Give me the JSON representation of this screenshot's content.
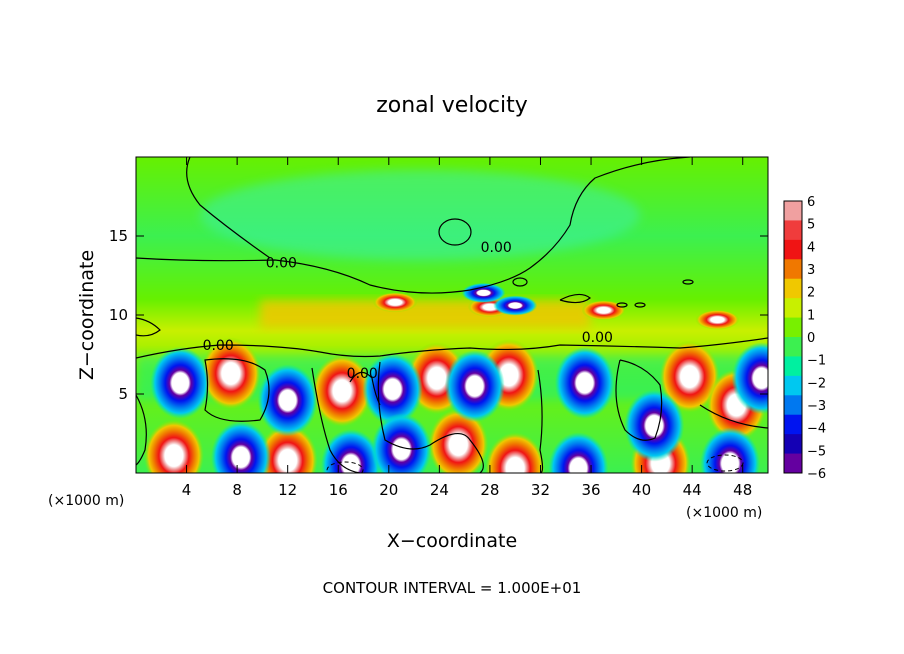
{
  "chart_data": {
    "type": "heatmap",
    "title": "zonal velocity",
    "xlabel": "X−coordinate",
    "ylabel": "Z−coordinate",
    "x_unit_left": "(×1000 m)",
    "x_unit_right": "(×1000 m)",
    "footer": "CONTOUR INTERVAL = 1.000E+01",
    "xlim": [
      0,
      50
    ],
    "ylim": [
      0,
      20
    ],
    "x_ticks": [
      4,
      8,
      12,
      16,
      20,
      24,
      28,
      32,
      36,
      40,
      44,
      48
    ],
    "y_ticks": [
      5,
      10,
      15
    ],
    "colorbar": {
      "range": [
        -6,
        6
      ],
      "tick_labels": [
        "6",
        "5",
        "4",
        "3",
        "2",
        "1",
        "0",
        "−1",
        "−2",
        "−3",
        "−4",
        "−5",
        "−6"
      ],
      "colors": [
        "#f0a0a0",
        "#f03c3c",
        "#f01414",
        "#f07800",
        "#f0c800",
        "#c8f000",
        "#78f000",
        "#3cf050",
        "#00f0a0",
        "#00c8f0",
        "#0078f0",
        "#0014f0",
        "#1400b4",
        "#6400a0"
      ]
    },
    "contour_labels": [
      {
        "text": "0.00",
        "x": 11.5,
        "z": 13.0
      },
      {
        "text": "0.00",
        "x": 28.5,
        "z": 14.0
      },
      {
        "text": "0.00",
        "x": 6.5,
        "z": 7.8
      },
      {
        "text": "0.00",
        "x": 36.5,
        "z": 8.3
      },
      {
        "text": "0.00",
        "x": 17.9,
        "z": 6.0
      }
    ],
    "features": [
      {
        "kind": "pos",
        "x": 7.5,
        "z": 6.3
      },
      {
        "kind": "pos",
        "x": 16.3,
        "z": 5.2
      },
      {
        "kind": "pos",
        "x": 23.8,
        "z": 6.0
      },
      {
        "kind": "pos",
        "x": 29.5,
        "z": 6.2
      },
      {
        "kind": "pos",
        "x": 43.8,
        "z": 6.1
      },
      {
        "kind": "pos",
        "x": 47.5,
        "z": 4.3
      },
      {
        "kind": "pos",
        "x": 3.0,
        "z": 1.1
      },
      {
        "kind": "pos",
        "x": 12.0,
        "z": 0.8
      },
      {
        "kind": "pos",
        "x": 25.5,
        "z": 1.8
      },
      {
        "kind": "pos",
        "x": 30.0,
        "z": 0.3
      },
      {
        "kind": "pos",
        "x": 41.5,
        "z": 0.6
      },
      {
        "kind": "pos",
        "x": 20.5,
        "z": 10.8
      },
      {
        "kind": "pos",
        "x": 28.0,
        "z": 10.5
      },
      {
        "kind": "pos",
        "x": 37.0,
        "z": 10.3
      },
      {
        "kind": "pos",
        "x": 46.0,
        "z": 9.7
      },
      {
        "kind": "neg",
        "x": 3.5,
        "z": 5.7
      },
      {
        "kind": "neg",
        "x": 12.0,
        "z": 4.6
      },
      {
        "kind": "neg",
        "x": 20.3,
        "z": 5.3
      },
      {
        "kind": "neg",
        "x": 26.8,
        "z": 5.5
      },
      {
        "kind": "neg",
        "x": 35.5,
        "z": 5.7
      },
      {
        "kind": "neg",
        "x": 41.0,
        "z": 3.0
      },
      {
        "kind": "neg",
        "x": 49.5,
        "z": 6.0
      },
      {
        "kind": "neg",
        "x": 8.3,
        "z": 1.0
      },
      {
        "kind": "neg",
        "x": 17.0,
        "z": 0.5
      },
      {
        "kind": "neg",
        "x": 21.0,
        "z": 1.5
      },
      {
        "kind": "neg",
        "x": 35.0,
        "z": 0.3
      },
      {
        "kind": "neg",
        "x": 47.0,
        "z": 0.6
      },
      {
        "kind": "neg",
        "x": 27.5,
        "z": 11.4
      },
      {
        "kind": "neg",
        "x": 30.0,
        "z": 10.6
      }
    ]
  }
}
